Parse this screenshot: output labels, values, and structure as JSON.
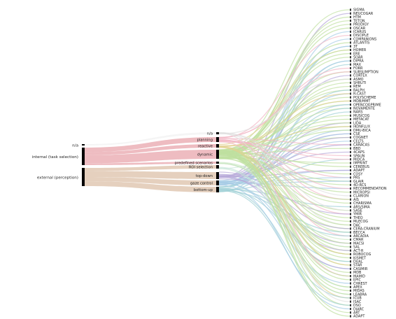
{
  "left_nodes": [
    {
      "label": "n/a",
      "color": "#f2f2f2"
    },
    {
      "label": "internal (task selection)",
      "color": "#e8a6ac"
    },
    {
      "label": "external (perception)",
      "color": "#dcc0a8"
    }
  ],
  "mid_nodes": [
    {
      "label": "n/a",
      "color": "#e0e0e0"
    },
    {
      "label": "planning",
      "color": "#f2b8c6"
    },
    {
      "label": "reactive",
      "color": "#e2d08e"
    },
    {
      "label": "dynamic",
      "color": "#bfe0a0"
    },
    {
      "label": "predefined scenarios",
      "color": "#c8e6c0"
    },
    {
      "label": "ROI selection",
      "color": "#c8e6d8"
    },
    {
      "label": "top-down",
      "color": "#b6a8d8"
    },
    {
      "label": "gaze control",
      "color": "#a6cce6"
    },
    {
      "label": "bottom-up",
      "color": "#9fd0d6"
    }
  ],
  "architectures": [
    "SIGMA",
    "NEUCOGAR",
    "HTM",
    "TETON",
    "PRODIGY",
    "OSCAR",
    "ICARUS",
    "DISCIPLE",
    "COMPANIONS",
    "ATLANTIS",
    "3T",
    "HOMER",
    "ERE",
    "SOAR",
    "DIPRA",
    "MAX",
    "FORR",
    "SUBSUMPTION",
    "CORTEX",
    "ASMO",
    "SHRUTI",
    "REM",
    "RALPH",
    "R-CAST",
    "POLYSCHEME",
    "MDB/MMT",
    "OPENCOGPRIME",
    "NOVAMENTE",
    "NARS",
    "MUSICOG",
    "METACAT",
    "LIDA",
    "IKONFLUX",
    "DMU-BICA",
    "CSE",
    "COGNET",
    "CELTS",
    "CARACAS",
    "BBD",
    "4CAPS",
    "SPAUN",
    "MIDCA",
    "IMPRINT",
    "CEREBUS",
    "ADAPT",
    "COSY",
    "PRS",
    "GLAIR",
    "4D-RCS",
    "RECOMMENDATION",
    "MICROPSI",
    "CLARION",
    "AIS",
    "CHARISMA",
    "ARS/SIMA",
    "SASE",
    "YMIR",
    "THEO",
    "MLECOG",
    "DAC",
    "CERA-CRANIUM",
    "BECCA",
    "ARCADIA",
    "CMAR",
    "MACSI",
    "SAL",
    "ACT-R",
    "ROBOCOG",
    "KISMET",
    "DUAL",
    "STAR",
    "CASIMIR",
    "MDB",
    "MAMID",
    "EPIC",
    "CHREST",
    "APEX",
    "MIDAS",
    "LEABRA",
    "ICUB",
    "ISAC",
    "DSO",
    "DIARC",
    "ART",
    "ADAPT"
  ]
}
